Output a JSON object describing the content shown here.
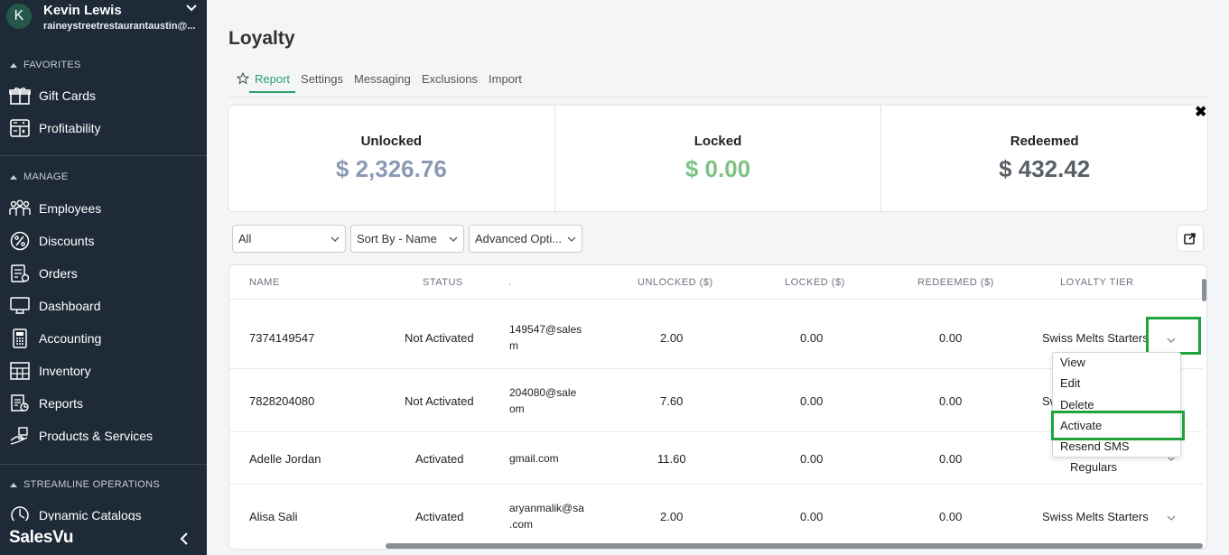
{
  "sidebar": {
    "user": {
      "initial": "K",
      "name": "Kevin Lewis",
      "email": "raineystreetrestaurantaustin@..."
    },
    "sections": {
      "favorites": "FAVORITES",
      "manage": "MANAGE",
      "streamline": "STREAMLINE OPERATIONS"
    },
    "favorites": [
      {
        "label": "Gift Cards",
        "icon": "gift-icon"
      },
      {
        "label": "Profitability",
        "icon": "calculator-icon"
      }
    ],
    "manage": [
      {
        "label": "Employees",
        "icon": "people-icon"
      },
      {
        "label": "Discounts",
        "icon": "percent-icon"
      },
      {
        "label": "Orders",
        "icon": "orders-icon"
      },
      {
        "label": "Dashboard",
        "icon": "monitor-icon"
      },
      {
        "label": "Accounting",
        "icon": "accounting-icon"
      },
      {
        "label": "Inventory",
        "icon": "inventory-icon"
      },
      {
        "label": "Reports",
        "icon": "reports-icon"
      },
      {
        "label": "Products & Services",
        "icon": "hand-box-icon"
      }
    ],
    "streamline": [
      {
        "label": "Dynamic Catalogs",
        "icon": "catalog-icon"
      }
    ],
    "brand": "SalesVu"
  },
  "page": {
    "title": "Loyalty"
  },
  "tabs": [
    {
      "label": "Report",
      "active": true
    },
    {
      "label": "Settings",
      "active": false
    },
    {
      "label": "Messaging",
      "active": false
    },
    {
      "label": "Exclusions",
      "active": false
    },
    {
      "label": "Import",
      "active": false
    }
  ],
  "summary": {
    "unlocked": {
      "label": "Unlocked",
      "value": "$ 2,326.76",
      "color": "#8b9ab3"
    },
    "locked": {
      "label": "Locked",
      "value": "$ 0.00",
      "color": "#7cc283"
    },
    "redeemed": {
      "label": "Redeemed",
      "value": "$ 432.42",
      "color": "#5a5f66"
    }
  },
  "filters": {
    "status": "All",
    "sort": "Sort By - Name",
    "advanced": "Advanced Opti..."
  },
  "table": {
    "headers": [
      "NAME",
      "STATUS",
      ".",
      "UNLOCKED ($)",
      "LOCKED ($)",
      "REDEEMED ($)",
      "LOYALTY TIER"
    ],
    "rows": [
      {
        "name": "7374149547",
        "status": "Not Activated",
        "email1": "149547@sales",
        "email2": "m",
        "unlocked": "2.00",
        "locked": "0.00",
        "redeemed": "0.00",
        "tier": "Swiss Melts Starters"
      },
      {
        "name": "7828204080",
        "status": "Not Activated",
        "email1": "204080@sale",
        "email2": "om",
        "unlocked": "7.60",
        "locked": "0.00",
        "redeemed": "0.00",
        "tier": "Sw"
      },
      {
        "name": "Adelle Jordan",
        "status": "Activated",
        "email1": "gmail.com",
        "email2": "",
        "unlocked": "11.60",
        "locked": "0.00",
        "redeemed": "0.00",
        "tier": "Regulars"
      },
      {
        "name": "Alisa Sali",
        "status": "Activated",
        "email1": "aryanmalik@sa",
        "email2": ".com",
        "unlocked": "2.00",
        "locked": "0.00",
        "redeemed": "0.00",
        "tier": "Swiss Melts Starters"
      }
    ]
  },
  "row_menu": [
    "View",
    "Edit",
    "Delete",
    "Activate",
    "Resend SMS"
  ],
  "colors": {
    "accent": "#2aa06a",
    "highlight": "#1fa33c",
    "sidebar": "#1f2a38"
  }
}
